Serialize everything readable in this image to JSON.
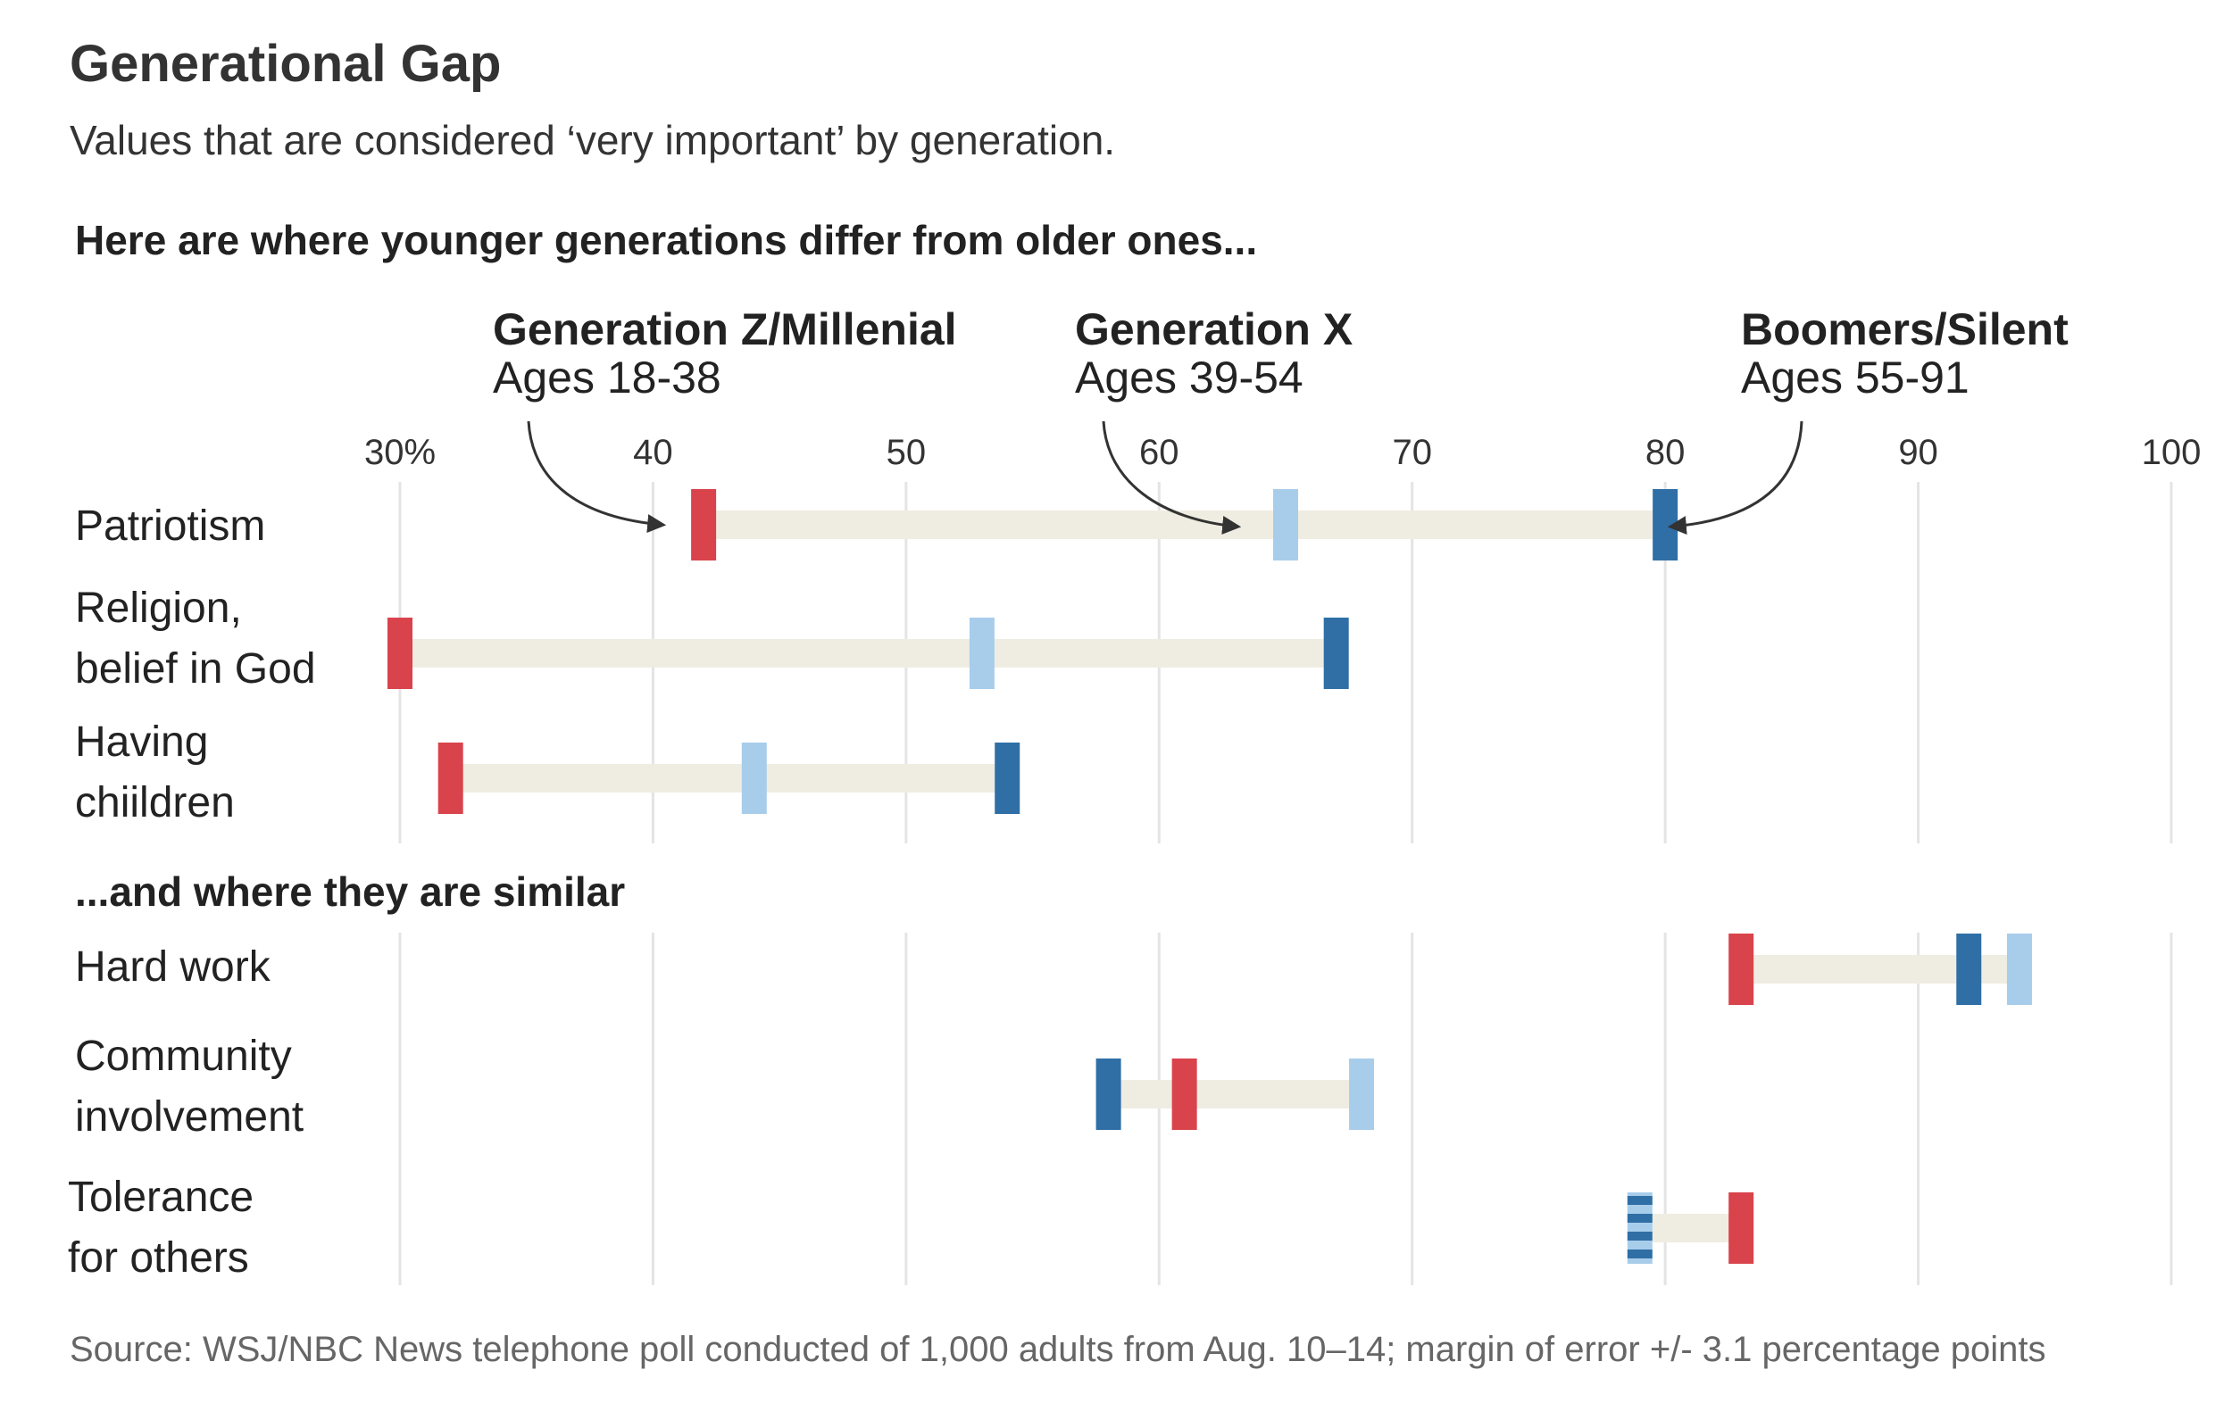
{
  "title": "Generational Gap",
  "subtitle": "Values that are considered ‘very important’ by generation.",
  "section_labels": {
    "differ": "Here are where younger generations differ from older ones...",
    "similar": "...and where they are similar"
  },
  "generations": [
    {
      "name": "Generation Z/Millenial",
      "ages": "Ages 18-38",
      "color": "#d9434b"
    },
    {
      "name": "Generation X",
      "ages": "Ages 39-54",
      "color": "#a8cdeb"
    },
    {
      "name": "Boomers/Silent",
      "ages": "Ages 55-91",
      "color": "#2f6fa6"
    }
  ],
  "source": "Source: WSJ/NBC News telephone poll conducted of 1,000 adults from Aug. 10–14; margin of error +/- 3.1 percentage points",
  "chart_data": {
    "type": "dot-range",
    "xlim": [
      30,
      100
    ],
    "ticks": [
      30,
      40,
      50,
      60,
      70,
      80,
      90,
      100
    ],
    "tick_labels": [
      "30%",
      "40",
      "50",
      "60",
      "70",
      "80",
      "90",
      "100"
    ],
    "series": [
      {
        "name": "Generation Z/Millenial",
        "color": "#d9434b"
      },
      {
        "name": "Generation X",
        "color": "#a8cdeb"
      },
      {
        "name": "Boomers/Silent",
        "color": "#2f6fa6"
      }
    ],
    "rows": [
      {
        "label_lines": [
          "Patriotism"
        ],
        "values": [
          42,
          65,
          80
        ]
      },
      {
        "label_lines": [
          "Religion,",
          "belief in God"
        ],
        "values": [
          30,
          53,
          67
        ]
      },
      {
        "label_lines": [
          "Having",
          "chiildren"
        ],
        "values": [
          32,
          44,
          54
        ]
      },
      {
        "label_lines": [
          "Hard work"
        ],
        "values": [
          83,
          94,
          92
        ]
      },
      {
        "label_lines": [
          "Community",
          "involvement"
        ],
        "values": [
          61,
          68,
          58
        ]
      },
      {
        "label_lines": [
          "Tolerance",
          "for others"
        ],
        "values": [
          83,
          79,
          79
        ]
      }
    ]
  }
}
